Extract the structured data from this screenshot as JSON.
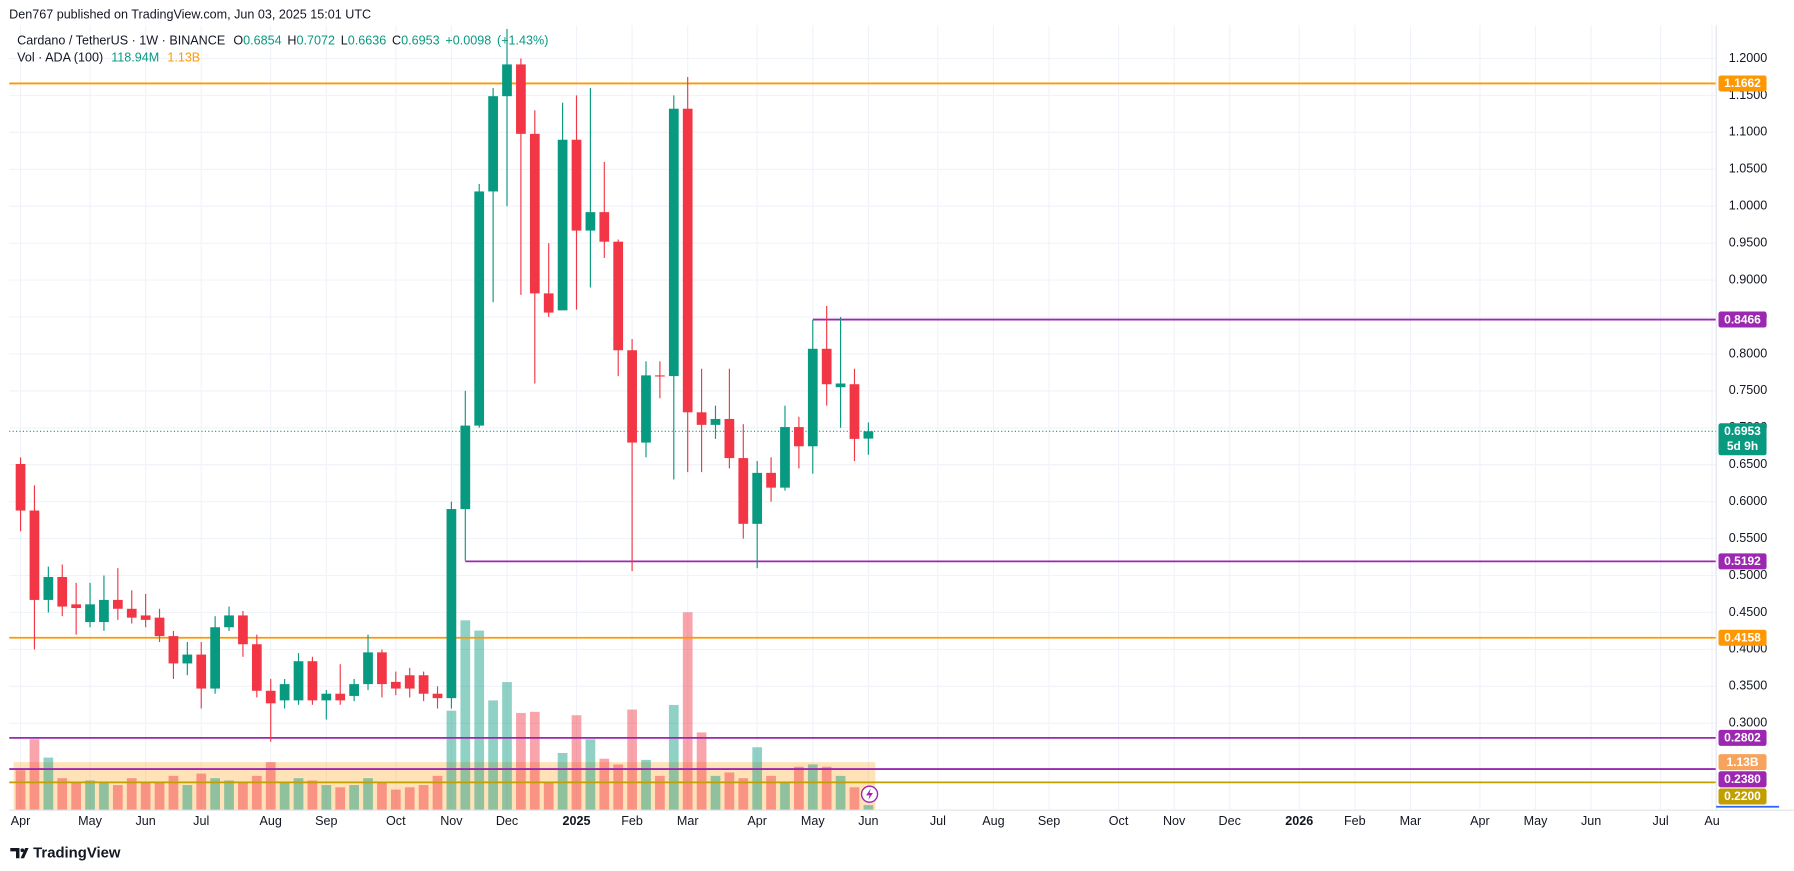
{
  "header": {
    "published": "Den767 published on TradingView.com, Jun 03, 2025 15:01 UTC"
  },
  "footer": {
    "brand": "TradingView"
  },
  "chart_data": {
    "type": "candlestick",
    "title": "Cardano / TetherUS · 1W · BINANCE",
    "legend": {
      "ohlc": [
        {
          "label": "O",
          "value": 0.6854
        },
        {
          "label": "H",
          "value": 0.7072
        },
        {
          "label": "L",
          "value": 0.6636
        },
        {
          "label": "C",
          "value": 0.6953
        }
      ],
      "change": {
        "value": 0.0098,
        "label": "+0.0098"
      },
      "change_pct": {
        "value": 1.43,
        "label": "(+1.43%)"
      },
      "volume_title": "Vol · ADA (100)",
      "volume_last": {
        "value": 118940000,
        "label": "118.94M"
      },
      "volume_ma": {
        "value": 1130000000,
        "label": "1.13B"
      }
    },
    "up_color": "#089981",
    "down_color": "#f23645",
    "grid": true,
    "x": [
      0,
      1,
      2,
      3,
      4,
      5,
      6,
      7,
      8,
      9,
      10,
      11,
      12,
      13,
      14,
      15,
      16,
      17,
      18,
      19,
      20,
      21,
      22,
      23,
      24,
      25,
      26,
      27,
      28,
      29,
      30,
      31,
      32,
      33,
      34,
      35,
      36,
      37,
      38,
      39,
      40,
      41,
      42,
      43,
      44,
      45,
      46,
      47,
      48,
      49,
      50,
      51,
      52,
      53,
      54,
      55,
      56,
      57,
      58,
      59,
      60,
      61
    ],
    "open": [
      0.651,
      0.588,
      0.467,
      0.498,
      0.461,
      0.437,
      0.437,
      0.467,
      0.455,
      0.446,
      0.443,
      0.418,
      0.381,
      0.393,
      0.347,
      0.43,
      0.446,
      0.407,
      0.344,
      0.331,
      0.331,
      0.384,
      0.331,
      0.34,
      0.337,
      0.353,
      0.396,
      0.356,
      0.365,
      0.365,
      0.34,
      0.334,
      0.59,
      0.703,
      1.02,
      1.149,
      1.192,
      1.098,
      0.882,
      0.859,
      1.09,
      0.967,
      0.992,
      0.952,
      0.805,
      0.68,
      0.771,
      0.77,
      1.132,
      0.721,
      0.704,
      0.712,
      0.659,
      0.57,
      0.639,
      0.619,
      0.701,
      0.675,
      0.807,
      0.755,
      0.759,
      0.6854
    ],
    "high": [
      0.66,
      0.622,
      0.512,
      0.515,
      0.49,
      0.49,
      0.5,
      0.51,
      0.48,
      0.475,
      0.455,
      0.425,
      0.41,
      0.41,
      0.445,
      0.458,
      0.452,
      0.42,
      0.36,
      0.36,
      0.395,
      0.39,
      0.345,
      0.38,
      0.36,
      0.42,
      0.4,
      0.37,
      0.375,
      0.37,
      0.35,
      0.6,
      0.75,
      1.03,
      1.16,
      1.24,
      1.2,
      1.13,
      0.95,
      1.14,
      1.15,
      1.16,
      1.06,
      0.955,
      0.82,
      0.79,
      0.79,
      1.15,
      1.175,
      0.78,
      0.73,
      0.78,
      0.705,
      0.655,
      0.66,
      0.73,
      0.715,
      0.846,
      0.865,
      0.85,
      0.78,
      0.7072
    ],
    "low": [
      0.56,
      0.4,
      0.45,
      0.445,
      0.42,
      0.43,
      0.425,
      0.44,
      0.435,
      0.43,
      0.41,
      0.36,
      0.365,
      0.32,
      0.34,
      0.425,
      0.39,
      0.335,
      0.275,
      0.32,
      0.325,
      0.325,
      0.305,
      0.325,
      0.33,
      0.345,
      0.335,
      0.338,
      0.335,
      0.33,
      0.32,
      0.32,
      0.52,
      0.7,
      0.87,
      1.0,
      0.88,
      0.76,
      0.85,
      0.86,
      0.86,
      0.89,
      0.93,
      0.77,
      0.506,
      0.66,
      0.74,
      0.63,
      0.64,
      0.64,
      0.685,
      0.645,
      0.55,
      0.51,
      0.6,
      0.615,
      0.645,
      0.638,
      0.73,
      0.7,
      0.655,
      0.6636
    ],
    "close": [
      0.588,
      0.467,
      0.498,
      0.458,
      0.456,
      0.461,
      0.467,
      0.455,
      0.443,
      0.44,
      0.418,
      0.381,
      0.393,
      0.347,
      0.43,
      0.446,
      0.407,
      0.344,
      0.327,
      0.353,
      0.384,
      0.331,
      0.34,
      0.331,
      0.353,
      0.396,
      0.353,
      0.347,
      0.347,
      0.34,
      0.334,
      0.59,
      0.703,
      1.02,
      1.149,
      1.192,
      1.098,
      0.882,
      0.856,
      1.09,
      0.967,
      0.992,
      0.952,
      0.805,
      0.68,
      0.771,
      0.77,
      1.132,
      0.721,
      0.704,
      0.712,
      0.659,
      0.57,
      0.639,
      0.619,
      0.701,
      0.675,
      0.807,
      0.759,
      0.76,
      0.685,
      0.6953
    ],
    "volume": [
      941000000,
      1668000000,
      1237000000,
      753000000,
      673000000,
      699000000,
      646000000,
      592000000,
      753000000,
      646000000,
      673000000,
      807000000,
      592000000,
      861000000,
      753000000,
      699000000,
      673000000,
      807000000,
      1130000000,
      673000000,
      753000000,
      699000000,
      592000000,
      538000000,
      592000000,
      753000000,
      646000000,
      484000000,
      538000000,
      592000000,
      807000000,
      2340000000,
      4465000000,
      4223000000,
      2582000000,
      3013000000,
      2287000000,
      2313000000,
      673000000,
      1345000000,
      2233000000,
      1668000000,
      1211000000,
      1076000000,
      2367000000,
      1184000000,
      807000000,
      2475000000,
      4654000000,
      1829000000,
      807000000,
      888000000,
      753000000,
      1480000000,
      807000000,
      673000000,
      1022000000,
      1076000000,
      1022000000,
      807000000,
      538000000,
      118940000
    ],
    "xlim": [
      -0.82,
      122.0
    ],
    "xticks": [
      {
        "value": 0,
        "label": "Apr"
      },
      {
        "value": 5,
        "label": "May"
      },
      {
        "value": 9,
        "label": "Jun"
      },
      {
        "value": 13,
        "label": "Jul"
      },
      {
        "value": 18,
        "label": "Aug"
      },
      {
        "value": 22,
        "label": "Sep"
      },
      {
        "value": 27,
        "label": "Oct"
      },
      {
        "value": 31,
        "label": "Nov"
      },
      {
        "value": 35,
        "label": "Dec"
      },
      {
        "value": 40,
        "label": "2025"
      },
      {
        "value": 44,
        "label": "Feb"
      },
      {
        "value": 48,
        "label": "Mar"
      },
      {
        "value": 53,
        "label": "Apr"
      },
      {
        "value": 57,
        "label": "May"
      },
      {
        "value": 61,
        "label": "Jun"
      },
      {
        "value": 66,
        "label": "Jul"
      },
      {
        "value": 70,
        "label": "Aug"
      },
      {
        "value": 74,
        "label": "Sep"
      },
      {
        "value": 79,
        "label": "Oct"
      },
      {
        "value": 83,
        "label": "Nov"
      },
      {
        "value": 87,
        "label": "Dec"
      },
      {
        "value": 92,
        "label": "2026"
      },
      {
        "value": 96,
        "label": "Feb"
      },
      {
        "value": 100,
        "label": "Mar"
      },
      {
        "value": 105,
        "label": "Apr"
      },
      {
        "value": 109,
        "label": "May"
      },
      {
        "value": 113,
        "label": "Jun"
      },
      {
        "value": 118,
        "label": "Jul"
      },
      {
        "value": 121.7,
        "label": "Au"
      }
    ],
    "ylim": [
      0.1823,
      1.2449
    ],
    "yticks": [
      {
        "value": 1.2,
        "label": "1.2000"
      },
      {
        "value": 1.15,
        "label": "1.1500"
      },
      {
        "value": 1.1,
        "label": "1.1000"
      },
      {
        "value": 1.05,
        "label": "1.0500"
      },
      {
        "value": 1.0,
        "label": "1.0000"
      },
      {
        "value": 0.95,
        "label": "0.9500"
      },
      {
        "value": 0.9,
        "label": "0.9000"
      },
      {
        "value": 0.85,
        "label": "0.8500"
      },
      {
        "value": 0.8,
        "label": "0.8000"
      },
      {
        "value": 0.75,
        "label": "0.7500"
      },
      {
        "value": 0.7,
        "label": "0.7000"
      },
      {
        "value": 0.65,
        "label": "0.6500"
      },
      {
        "value": 0.6,
        "label": "0.6000"
      },
      {
        "value": 0.55,
        "label": "0.5500"
      },
      {
        "value": 0.5,
        "label": "0.5000"
      },
      {
        "value": 0.45,
        "label": "0.4500"
      },
      {
        "value": 0.4,
        "label": "0.4000"
      },
      {
        "value": 0.35,
        "label": "0.3500"
      },
      {
        "value": 0.3,
        "label": "0.3000"
      }
    ],
    "levels": [
      {
        "value": 1.1662,
        "label": "1.1662",
        "color": "#ff9800"
      },
      {
        "value": 0.8466,
        "label": "0.8466",
        "color": "#9c27b0",
        "x_start": 57
      },
      {
        "value": 0.5192,
        "label": "0.5192",
        "color": "#9c27b0",
        "x_start": 32
      },
      {
        "value": 0.4158,
        "label": "0.4158",
        "color": "#ff9800"
      },
      {
        "value": 0.2802,
        "label": "0.2802",
        "color": "#9c27b0"
      },
      {
        "value": 0.238,
        "label": "0.2380",
        "color": "#9c27b0"
      },
      {
        "value": 0.22,
        "label": "0.2200",
        "color": "#c29f00"
      }
    ],
    "current_price": {
      "value": 0.6953,
      "label": "0.6953",
      "countdown": "5d 9h",
      "color": "#089981"
    }
  }
}
